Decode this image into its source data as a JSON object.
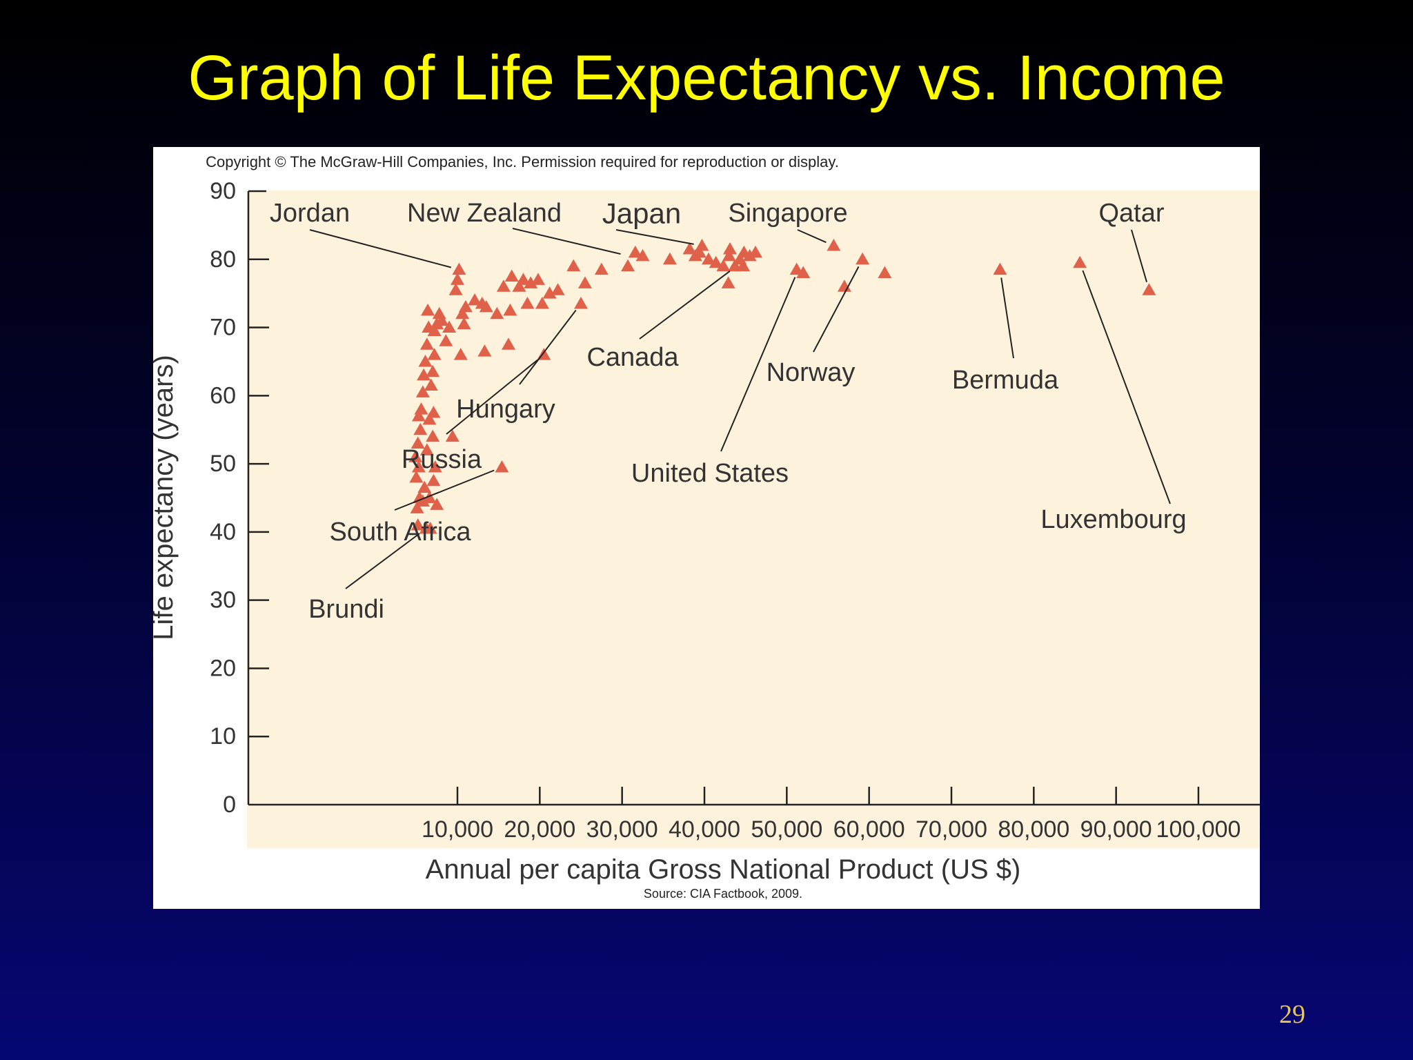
{
  "slide": {
    "title": "Graph of Life Expectancy vs. Income",
    "page_number": "29"
  },
  "figure": {
    "copyright": "Copyright © The McGraw-Hill Companies, Inc. Permission required for reproduction or display.",
    "source": "Source: CIA Factbook, 2009."
  },
  "colors": {
    "background_top": "#000000",
    "background_bottom": "#060673",
    "title": "#ffff00",
    "page_number": "#e8c84a",
    "plot_background": "#fdf2dc",
    "marker": "#e0614a"
  },
  "chart_data": {
    "type": "scatter",
    "marker": "triangle",
    "xlabel": "Annual per capita Gross National Product (US $)",
    "ylabel": "Life expectancy (years)",
    "xlim": [
      4000,
      100000
    ],
    "ylim": [
      0,
      90
    ],
    "xticks": [
      10000,
      20000,
      30000,
      40000,
      50000,
      60000,
      70000,
      80000,
      90000,
      100000
    ],
    "xtick_labels": [
      "10,000",
      "20,000",
      "30,000",
      "40,000",
      "50,000",
      "60,000",
      "70,000",
      "80,000",
      "90,000",
      "100,000"
    ],
    "yticks": [
      0,
      10,
      20,
      30,
      40,
      50,
      60,
      70,
      80,
      90
    ],
    "ytick_labels": [
      "0",
      "10",
      "20",
      "30",
      "40",
      "50",
      "60",
      "70",
      "80",
      "90"
    ],
    "grid": false,
    "points": [
      {
        "x": 5200,
        "y": 41
      },
      {
        "x": 5100,
        "y": 43.5
      },
      {
        "x": 5400,
        "y": 45
      },
      {
        "x": 5000,
        "y": 48
      },
      {
        "x": 5300,
        "y": 49.5
      },
      {
        "x": 4900,
        "y": 51
      },
      {
        "x": 5200,
        "y": 53
      },
      {
        "x": 5500,
        "y": 55
      },
      {
        "x": 5300,
        "y": 57
      },
      {
        "x": 5600,
        "y": 58
      },
      {
        "x": 5800,
        "y": 60.5
      },
      {
        "x": 5900,
        "y": 63
      },
      {
        "x": 6100,
        "y": 65
      },
      {
        "x": 6300,
        "y": 67.5
      },
      {
        "x": 6500,
        "y": 70
      },
      {
        "x": 6400,
        "y": 72.5
      },
      {
        "x": 5800,
        "y": 44.5
      },
      {
        "x": 6000,
        "y": 46.5
      },
      {
        "x": 6300,
        "y": 52
      },
      {
        "x": 6600,
        "y": 56.5
      },
      {
        "x": 6800,
        "y": 61.5
      },
      {
        "x": 7000,
        "y": 63.5
      },
      {
        "x": 7200,
        "y": 66
      },
      {
        "x": 7500,
        "y": 70.5
      },
      {
        "x": 7800,
        "y": 72
      },
      {
        "x": 6200,
        "y": 40.5
      },
      {
        "x": 6600,
        "y": 45
      },
      {
        "x": 7100,
        "y": 47.5
      },
      {
        "x": 7500,
        "y": 44
      },
      {
        "x": 7300,
        "y": 49.5
      },
      {
        "x": 7000,
        "y": 54
      },
      {
        "x": 7100,
        "y": 57.5
      },
      {
        "x": 7200,
        "y": 69.5
      },
      {
        "x": 8100,
        "y": 71
      },
      {
        "x": 8600,
        "y": 68
      },
      {
        "x": 9000,
        "y": 70
      },
      {
        "x": 9400,
        "y": 54
      },
      {
        "x": 6700,
        "y": 40.5
      },
      {
        "x": 9800,
        "y": 75.5
      },
      {
        "x": 10000,
        "y": 77
      },
      {
        "x": 10200,
        "y": 78.5
      },
      {
        "x": 10600,
        "y": 72
      },
      {
        "x": 11000,
        "y": 73
      },
      {
        "x": 10800,
        "y": 70.5
      },
      {
        "x": 10400,
        "y": 66
      },
      {
        "x": 12100,
        "y": 74
      },
      {
        "x": 13000,
        "y": 73.5
      },
      {
        "x": 13500,
        "y": 73
      },
      {
        "x": 13300,
        "y": 66.5
      },
      {
        "x": 14800,
        "y": 72
      },
      {
        "x": 15600,
        "y": 76
      },
      {
        "x": 16400,
        "y": 72.5
      },
      {
        "x": 16200,
        "y": 67.5
      },
      {
        "x": 16600,
        "y": 77.5
      },
      {
        "x": 17500,
        "y": 76
      },
      {
        "x": 18000,
        "y": 77
      },
      {
        "x": 18500,
        "y": 73.5
      },
      {
        "x": 18900,
        "y": 76.5
      },
      {
        "x": 19800,
        "y": 77
      },
      {
        "x": 20300,
        "y": 73.5
      },
      {
        "x": 21200,
        "y": 75
      },
      {
        "x": 22200,
        "y": 75.5
      },
      {
        "x": 20500,
        "y": 66
      },
      {
        "x": 15400,
        "y": 49.5
      },
      {
        "x": 24100,
        "y": 79
      },
      {
        "x": 25000,
        "y": 73.5
      },
      {
        "x": 25500,
        "y": 76.5
      },
      {
        "x": 27500,
        "y": 78.5
      },
      {
        "x": 30700,
        "y": 79
      },
      {
        "x": 31600,
        "y": 81
      },
      {
        "x": 32500,
        "y": 80.5
      },
      {
        "x": 35800,
        "y": 80
      },
      {
        "x": 38200,
        "y": 81.5
      },
      {
        "x": 38900,
        "y": 80.5
      },
      {
        "x": 39400,
        "y": 81
      },
      {
        "x": 39700,
        "y": 82
      },
      {
        "x": 40500,
        "y": 80
      },
      {
        "x": 41400,
        "y": 79.5
      },
      {
        "x": 42300,
        "y": 79
      },
      {
        "x": 43000,
        "y": 80.5
      },
      {
        "x": 43100,
        "y": 81.5
      },
      {
        "x": 43700,
        "y": 79
      },
      {
        "x": 44300,
        "y": 80
      },
      {
        "x": 44800,
        "y": 81
      },
      {
        "x": 45500,
        "y": 80.5
      },
      {
        "x": 46200,
        "y": 81
      },
      {
        "x": 42900,
        "y": 76.5
      },
      {
        "x": 44700,
        "y": 79
      },
      {
        "x": 51200,
        "y": 78.5
      },
      {
        "x": 52000,
        "y": 78
      },
      {
        "x": 55700,
        "y": 82
      },
      {
        "x": 57000,
        "y": 76
      },
      {
        "x": 59200,
        "y": 80
      },
      {
        "x": 61900,
        "y": 78
      },
      {
        "x": 75900,
        "y": 78.5
      },
      {
        "x": 85600,
        "y": 79.5
      },
      {
        "x": 94000,
        "y": 75.5
      }
    ],
    "annotations": [
      {
        "label": "Jordan",
        "x": 10200,
        "y": 78.5
      },
      {
        "label": "New Zealand",
        "x": 30800,
        "y": 80.5
      },
      {
        "label": "Japan",
        "x": 39700,
        "y": 82
      },
      {
        "label": "Singapore",
        "x": 55700,
        "y": 82
      },
      {
        "label": "Qatar",
        "x": 94000,
        "y": 75.5
      },
      {
        "label": "Canada",
        "x": 43900,
        "y": 79
      },
      {
        "label": "Norway",
        "x": 59200,
        "y": 80
      },
      {
        "label": "Bermuda",
        "x": 75900,
        "y": 78.5
      },
      {
        "label": "Hungary",
        "x": 25000,
        "y": 73.5
      },
      {
        "label": "Russia",
        "x": 20500,
        "y": 66
      },
      {
        "label": "United States",
        "x": 51400,
        "y": 78.5
      },
      {
        "label": "Luxembourg",
        "x": 85600,
        "y": 79.5
      },
      {
        "label": "South Africa",
        "x": 15400,
        "y": 49.5
      },
      {
        "label": "Brundi",
        "x": 6200,
        "y": 40.5
      }
    ]
  }
}
